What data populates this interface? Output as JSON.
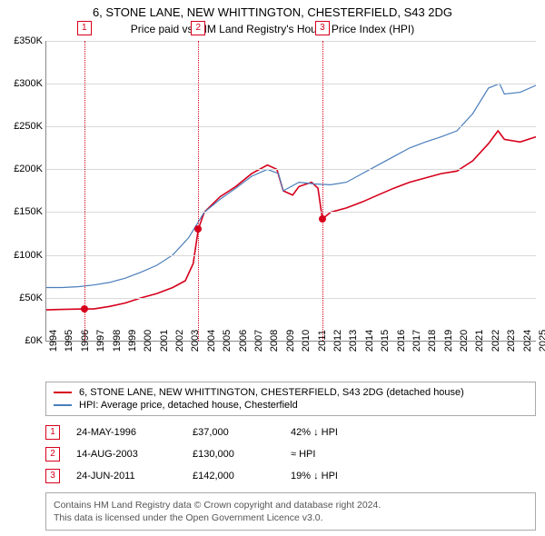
{
  "title": "6, STONE LANE, NEW WHITTINGTON, CHESTERFIELD, S43 2DG",
  "subtitle": "Price paid vs. HM Land Registry's House Price Index (HPI)",
  "chart": {
    "type": "line",
    "x_start": 1994,
    "x_end": 2025,
    "ylim": [
      0,
      350000
    ],
    "ytick_step": 50000,
    "y_prefix": "£",
    "y_suffix": "K",
    "background_color": "#ffffff",
    "grid_color": "#d9d9d9",
    "axis_color": "#888888",
    "label_fontsize": 11,
    "series": [
      {
        "name": "property",
        "label": "6, STONE LANE, NEW WHITTINGTON, CHESTERFIELD, S43 2DG (detached house)",
        "color": "#d6001c",
        "width": 1.6,
        "points": [
          [
            1994,
            36000
          ],
          [
            1995,
            36500
          ],
          [
            1996.4,
            37000
          ],
          [
            1997,
            37000
          ],
          [
            1998,
            40000
          ],
          [
            1999,
            44000
          ],
          [
            2000,
            50000
          ],
          [
            2001,
            55000
          ],
          [
            2002,
            62000
          ],
          [
            2002.8,
            70000
          ],
          [
            2003.3,
            90000
          ],
          [
            2003.62,
            130000
          ],
          [
            2004,
            150000
          ],
          [
            2005,
            168000
          ],
          [
            2006,
            180000
          ],
          [
            2007,
            195000
          ],
          [
            2008,
            205000
          ],
          [
            2008.6,
            200000
          ],
          [
            2009,
            175000
          ],
          [
            2009.6,
            170000
          ],
          [
            2010,
            180000
          ],
          [
            2010.8,
            185000
          ],
          [
            2011.2,
            178000
          ],
          [
            2011.48,
            142000
          ],
          [
            2012,
            150000
          ],
          [
            2013,
            155000
          ],
          [
            2014,
            162000
          ],
          [
            2015,
            170000
          ],
          [
            2016,
            178000
          ],
          [
            2017,
            185000
          ],
          [
            2018,
            190000
          ],
          [
            2019,
            195000
          ],
          [
            2020,
            198000
          ],
          [
            2021,
            210000
          ],
          [
            2022,
            230000
          ],
          [
            2022.6,
            245000
          ],
          [
            2023,
            235000
          ],
          [
            2024,
            232000
          ],
          [
            2025,
            238000
          ]
        ]
      },
      {
        "name": "hpi",
        "label": "HPI: Average price, detached house, Chesterfield",
        "color": "#4a7ebb",
        "width": 1.2,
        "points": [
          [
            1994,
            62000
          ],
          [
            1995,
            62000
          ],
          [
            1996,
            63000
          ],
          [
            1997,
            65000
          ],
          [
            1998,
            68000
          ],
          [
            1999,
            73000
          ],
          [
            2000,
            80000
          ],
          [
            2001,
            88000
          ],
          [
            2002,
            100000
          ],
          [
            2003,
            120000
          ],
          [
            2004,
            150000
          ],
          [
            2005,
            165000
          ],
          [
            2006,
            178000
          ],
          [
            2007,
            192000
          ],
          [
            2008,
            200000
          ],
          [
            2008.7,
            195000
          ],
          [
            2009,
            175000
          ],
          [
            2010,
            185000
          ],
          [
            2011,
            183000
          ],
          [
            2012,
            182000
          ],
          [
            2013,
            185000
          ],
          [
            2014,
            195000
          ],
          [
            2015,
            205000
          ],
          [
            2016,
            215000
          ],
          [
            2017,
            225000
          ],
          [
            2018,
            232000
          ],
          [
            2019,
            238000
          ],
          [
            2020,
            245000
          ],
          [
            2021,
            265000
          ],
          [
            2022,
            295000
          ],
          [
            2022.7,
            300000
          ],
          [
            2023,
            288000
          ],
          [
            2024,
            290000
          ],
          [
            2025,
            298000
          ]
        ]
      }
    ],
    "event_markers": [
      {
        "n": "1",
        "year": 1996.4,
        "value": 37000,
        "color": "#d6001c"
      },
      {
        "n": "2",
        "year": 2003.62,
        "value": 130000,
        "color": "#d6001c"
      },
      {
        "n": "3",
        "year": 2011.48,
        "value": 142000,
        "color": "#d6001c"
      }
    ]
  },
  "events": [
    {
      "n": "1",
      "date": "24-MAY-1996",
      "price": "£37,000",
      "note": "42% ↓ HPI",
      "color": "#d6001c"
    },
    {
      "n": "2",
      "date": "14-AUG-2003",
      "price": "£130,000",
      "note": "≈ HPI",
      "color": "#d6001c"
    },
    {
      "n": "3",
      "date": "24-JUN-2011",
      "price": "£142,000",
      "note": "19% ↓ HPI",
      "color": "#d6001c"
    }
  ],
  "footer": {
    "line1": "Contains HM Land Registry data © Crown copyright and database right 2024.",
    "line2": "This data is licensed under the Open Government Licence v3.0."
  }
}
